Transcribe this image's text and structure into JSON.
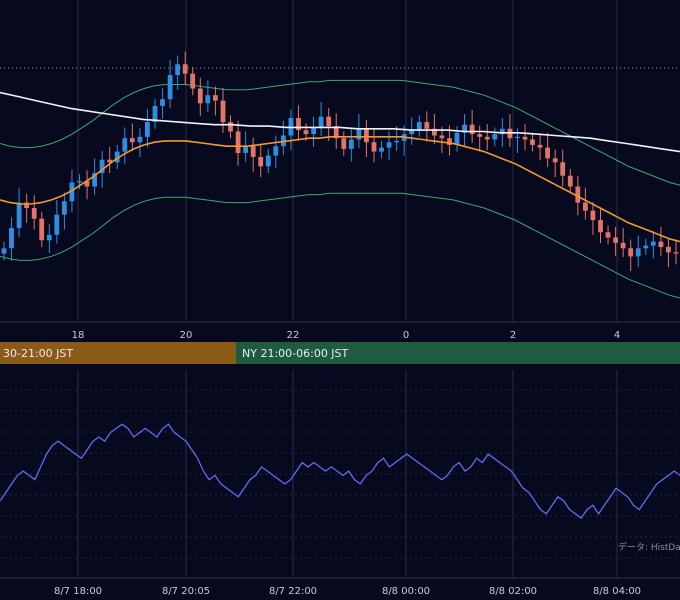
{
  "colors": {
    "background": "#070a1f",
    "grid": "#2a2e45",
    "candle_up": "#2f8de4",
    "candle_down": "#e57366",
    "ma_long": "#f2f2f2",
    "ma_mid": "#f39a2b",
    "bollinger": "#3fa86a",
    "oscillator": "#5b6cf0",
    "session_tokyo": "#8a5a16",
    "session_ny": "#1f5c3f"
  },
  "price_axis_ticks": [
    "18",
    "20",
    "22",
    "0",
    "2",
    "4"
  ],
  "sessions": [
    {
      "label": "30-21:00 JST"
    },
    {
      "label": "NY 21:00-06:00 JST"
    }
  ],
  "oscillator_axis_ticks": [
    "8/7 18:00",
    "8/7 20:05",
    "8/7 22:00",
    "8/8 00:00",
    "8/8 02:00",
    "8/8 04:00"
  ],
  "credit": "データ: HistDa",
  "chart_data": [
    {
      "type": "candlestick",
      "x_ticks": [
        "18",
        "20",
        "22",
        "0",
        "2",
        "4"
      ],
      "legend": "none",
      "grid": true,
      "close": [
        100.0,
        101.5,
        103.4,
        103.0,
        102.2,
        100.6,
        101.0,
        102.5,
        103.5,
        104.9,
        105.0,
        104.6,
        105.6,
        106.6,
        106.4,
        107.2,
        108.2,
        107.9,
        108.3,
        109.4,
        110.6,
        111.1,
        112.9,
        113.7,
        113.0,
        111.9,
        110.8,
        111.4,
        111.0,
        109.4,
        108.7,
        107.1,
        107.6,
        106.8,
        106.1,
        106.9,
        107.6,
        108.4,
        109.7,
        108.8,
        108.5,
        109.0,
        109.8,
        109.1,
        108.2,
        107.4,
        108.1,
        108.9,
        107.9,
        107.2,
        107.5,
        107.9,
        108.0,
        108.5,
        108.8,
        109.4,
        108.9,
        108.4,
        108.2,
        107.7,
        108.6,
        109.2,
        108.5,
        108.3,
        108.1,
        108.5,
        108.9,
        108.2,
        108.3,
        108.1,
        107.7,
        107.5,
        106.7,
        106.4,
        105.4,
        104.6,
        103.4,
        102.8,
        102.1,
        101.2,
        100.8,
        100.4,
        100.0,
        99.4,
        100.0,
        100.2,
        100.5,
        100.1,
        99.7,
        99.6
      ],
      "ma_mid": [
        103.6,
        103.4,
        103.3,
        103.3,
        103.4,
        103.6,
        103.9,
        104.3,
        104.8,
        105.3,
        105.9,
        106.5,
        107.0,
        107.4,
        107.7,
        107.9,
        108.0,
        108.0,
        108.0,
        107.9,
        107.8,
        107.7,
        107.6,
        107.6,
        107.6,
        107.7,
        107.8,
        107.9,
        108.0,
        108.1,
        108.2,
        108.2,
        108.3,
        108.3,
        108.3,
        108.3,
        108.3,
        108.3,
        108.3,
        108.3,
        108.2,
        108.1,
        108.0,
        107.9,
        107.8,
        107.6,
        107.4,
        107.2,
        106.9,
        106.6,
        106.3,
        105.9,
        105.5,
        105.1,
        104.7,
        104.3,
        103.9,
        103.5,
        103.1,
        102.7,
        102.3,
        101.9,
        101.6,
        101.3,
        101.0,
        100.7,
        100.5
      ],
      "ma_long": [
        111.6,
        111.3,
        111.0,
        110.7,
        110.4,
        110.2,
        110.0,
        109.8,
        109.6,
        109.5,
        109.4,
        109.3,
        109.2,
        109.2,
        109.1,
        109.1,
        109.0,
        109.0,
        109.0,
        109.0,
        108.9,
        108.9,
        108.9,
        108.8,
        108.8,
        108.8,
        108.7,
        108.7,
        108.6,
        108.6,
        108.5,
        108.4,
        108.3,
        108.2,
        108.0,
        107.8,
        107.6,
        107.4,
        107.2
      ]
    },
    {
      "type": "line",
      "x_ticks": [
        "8/7 18:00",
        "8/7 20:05",
        "8/7 22:00",
        "8/8 00:00",
        "8/8 02:00",
        "8/8 04:00"
      ],
      "grid": true,
      "series": [
        {
          "values": [
            46,
            48,
            50,
            52,
            53,
            52,
            51,
            54,
            57,
            59,
            60,
            59,
            58,
            57,
            56,
            58,
            60,
            61,
            60,
            62,
            63,
            64,
            63,
            61,
            62,
            63,
            62,
            61,
            63,
            64,
            62,
            61,
            60,
            58,
            56,
            53,
            51,
            52,
            50,
            49,
            48,
            47,
            49,
            51,
            52,
            54,
            53,
            52,
            51,
            50,
            51,
            53,
            55,
            54,
            55,
            54,
            53,
            54,
            53,
            52,
            53,
            51,
            50,
            52,
            53,
            55,
            56,
            54,
            55,
            56,
            57,
            56,
            55,
            54,
            53,
            52,
            51,
            52,
            54,
            55,
            53,
            54,
            56,
            55,
            57,
            56,
            55,
            54,
            53,
            51,
            49,
            48,
            46,
            44,
            43,
            45,
            47,
            46,
            44,
            43,
            42,
            44,
            45,
            43,
            45,
            47,
            49,
            48,
            47,
            45,
            44,
            46,
            48,
            50,
            51,
            52,
            53,
            52
          ]
        }
      ]
    }
  ]
}
